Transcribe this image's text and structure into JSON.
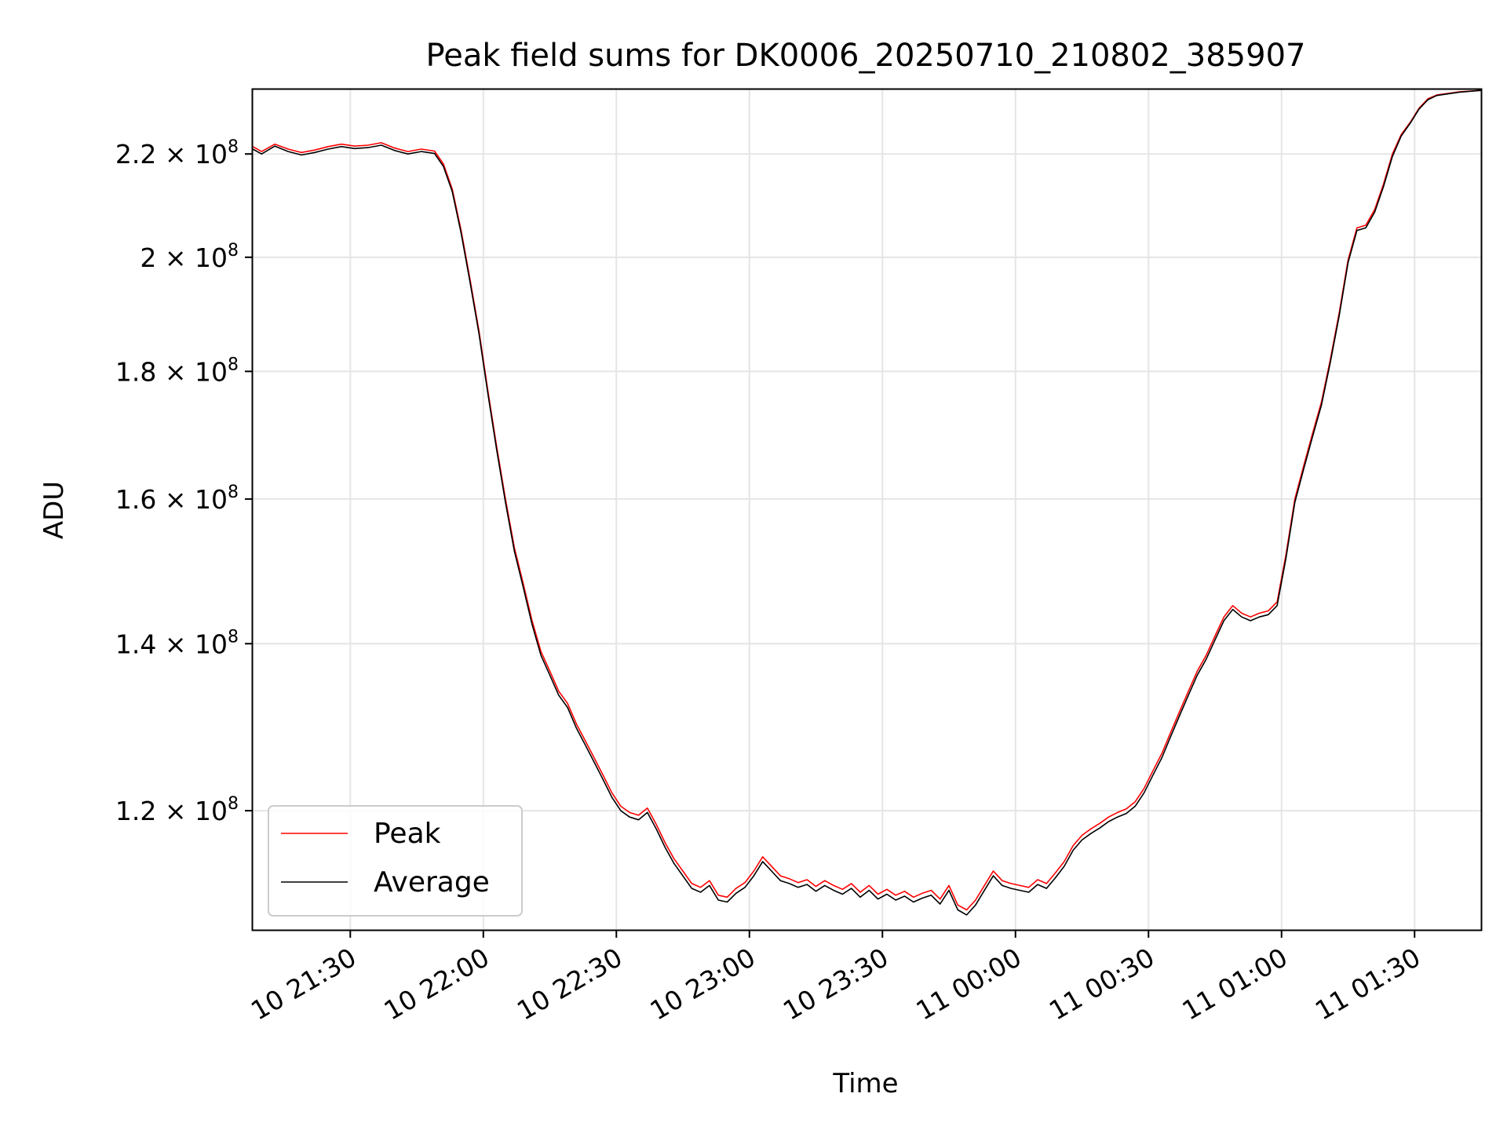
{
  "chart_data": {
    "type": "line",
    "title": "Peak field sums for DK0006_20250710_210802_385907",
    "xlabel": "Time",
    "ylabel": "ADU",
    "y_scale": "log",
    "ylim": [
      107500000,
      233500000
    ],
    "xlim": [
      "2025-07-10 21:08:00",
      "2025-07-11 01:45:00"
    ],
    "grid": true,
    "legend_position": "lower-left",
    "x_ticks": [
      {
        "label": "10 21:30",
        "value": "2025-07-10 21:30:00"
      },
      {
        "label": "10 22:00",
        "value": "2025-07-10 22:00:00"
      },
      {
        "label": "10 22:30",
        "value": "2025-07-10 22:30:00"
      },
      {
        "label": "10 23:00",
        "value": "2025-07-10 23:00:00"
      },
      {
        "label": "10 23:30",
        "value": "2025-07-10 23:30:00"
      },
      {
        "label": "11 00:00",
        "value": "2025-07-11 00:00:00"
      },
      {
        "label": "11 00:30",
        "value": "2025-07-11 00:30:00"
      },
      {
        "label": "11 01:00",
        "value": "2025-07-11 01:00:00"
      },
      {
        "label": "11 01:30",
        "value": "2025-07-11 01:30:00"
      }
    ],
    "y_ticks": [
      {
        "mantissa": "1.2",
        "exponent": "8",
        "value": 120000000
      },
      {
        "mantissa": "1.4",
        "exponent": "8",
        "value": 140000000
      },
      {
        "mantissa": "1.6",
        "exponent": "8",
        "value": 160000000
      },
      {
        "mantissa": "1.8",
        "exponent": "8",
        "value": 180000000
      },
      {
        "mantissa": "2",
        "exponent": "8",
        "value": 200000000
      },
      {
        "mantissa": "2.2",
        "exponent": "8",
        "value": 220000000
      }
    ],
    "x": [
      "2025-07-10 21:08:00",
      "2025-07-10 21:10:00",
      "2025-07-10 21:13:00",
      "2025-07-10 21:16:00",
      "2025-07-10 21:19:00",
      "2025-07-10 21:22:00",
      "2025-07-10 21:25:00",
      "2025-07-10 21:28:00",
      "2025-07-10 21:31:00",
      "2025-07-10 21:34:00",
      "2025-07-10 21:37:00",
      "2025-07-10 21:40:00",
      "2025-07-10 21:43:00",
      "2025-07-10 21:46:00",
      "2025-07-10 21:49:00",
      "2025-07-10 21:51:00",
      "2025-07-10 21:53:00",
      "2025-07-10 21:55:00",
      "2025-07-10 21:57:00",
      "2025-07-10 21:59:00",
      "2025-07-10 22:01:00",
      "2025-07-10 22:03:00",
      "2025-07-10 22:05:00",
      "2025-07-10 22:07:00",
      "2025-07-10 22:09:00",
      "2025-07-10 22:11:00",
      "2025-07-10 22:13:00",
      "2025-07-10 22:15:00",
      "2025-07-10 22:17:00",
      "2025-07-10 22:19:00",
      "2025-07-10 22:21:00",
      "2025-07-10 22:23:00",
      "2025-07-10 22:25:00",
      "2025-07-10 22:27:00",
      "2025-07-10 22:29:00",
      "2025-07-10 22:31:00",
      "2025-07-10 22:33:00",
      "2025-07-10 22:35:00",
      "2025-07-10 22:37:00",
      "2025-07-10 22:39:00",
      "2025-07-10 22:41:00",
      "2025-07-10 22:43:00",
      "2025-07-10 22:45:00",
      "2025-07-10 22:47:00",
      "2025-07-10 22:49:00",
      "2025-07-10 22:51:00",
      "2025-07-10 22:53:00",
      "2025-07-10 22:55:00",
      "2025-07-10 22:57:00",
      "2025-07-10 22:59:00",
      "2025-07-10 23:01:00",
      "2025-07-10 23:03:00",
      "2025-07-10 23:05:00",
      "2025-07-10 23:07:00",
      "2025-07-10 23:09:00",
      "2025-07-10 23:11:00",
      "2025-07-10 23:13:00",
      "2025-07-10 23:15:00",
      "2025-07-10 23:17:00",
      "2025-07-10 23:19:00",
      "2025-07-10 23:21:00",
      "2025-07-10 23:23:00",
      "2025-07-10 23:25:00",
      "2025-07-10 23:27:00",
      "2025-07-10 23:29:00",
      "2025-07-10 23:31:00",
      "2025-07-10 23:33:00",
      "2025-07-10 23:35:00",
      "2025-07-10 23:37:00",
      "2025-07-10 23:39:00",
      "2025-07-10 23:41:00",
      "2025-07-10 23:43:00",
      "2025-07-10 23:45:00",
      "2025-07-10 23:47:00",
      "2025-07-10 23:49:00",
      "2025-07-10 23:51:00",
      "2025-07-10 23:53:00",
      "2025-07-10 23:55:00",
      "2025-07-10 23:57:00",
      "2025-07-10 23:59:00",
      "2025-07-11 00:01:00",
      "2025-07-11 00:03:00",
      "2025-07-11 00:05:00",
      "2025-07-11 00:07:00",
      "2025-07-11 00:09:00",
      "2025-07-11 00:11:00",
      "2025-07-11 00:13:00",
      "2025-07-11 00:15:00",
      "2025-07-11 00:17:00",
      "2025-07-11 00:19:00",
      "2025-07-11 00:21:00",
      "2025-07-11 00:23:00",
      "2025-07-11 00:25:00",
      "2025-07-11 00:27:00",
      "2025-07-11 00:29:00",
      "2025-07-11 00:31:00",
      "2025-07-11 00:33:00",
      "2025-07-11 00:35:00",
      "2025-07-11 00:37:00",
      "2025-07-11 00:39:00",
      "2025-07-11 00:41:00",
      "2025-07-11 00:43:00",
      "2025-07-11 00:45:00",
      "2025-07-11 00:47:00",
      "2025-07-11 00:49:00",
      "2025-07-11 00:51:00",
      "2025-07-11 00:53:00",
      "2025-07-11 00:55:00",
      "2025-07-11 00:57:00",
      "2025-07-11 00:59:00",
      "2025-07-11 01:01:00",
      "2025-07-11 01:03:00",
      "2025-07-11 01:05:00",
      "2025-07-11 01:07:00",
      "2025-07-11 01:09:00",
      "2025-07-11 01:11:00",
      "2025-07-11 01:13:00",
      "2025-07-11 01:15:00",
      "2025-07-11 01:17:00",
      "2025-07-11 01:19:00",
      "2025-07-11 01:21:00",
      "2025-07-11 01:23:00",
      "2025-07-11 01:25:00",
      "2025-07-11 01:27:00",
      "2025-07-11 01:29:00",
      "2025-07-11 01:31:00",
      "2025-07-11 01:33:00",
      "2025-07-11 01:35:00",
      "2025-07-11 01:40:00",
      "2025-07-11 01:45:00"
    ],
    "series": [
      {
        "name": "Peak",
        "color": "#ff0000",
        "values": [
          221500000,
          220500000,
          222000000,
          221000000,
          220300000,
          220800000,
          221500000,
          222000000,
          221600000,
          221800000,
          222300000,
          221200000,
          220500000,
          221000000,
          220600000,
          218000000,
          213000000,
          205000000,
          196000000,
          187000000,
          177000000,
          168000000,
          160000000,
          153000000,
          148000000,
          143000000,
          139000000,
          136500000,
          134000000,
          132500000,
          130000000,
          128000000,
          126000000,
          124000000,
          122000000,
          120500000,
          119800000,
          119500000,
          120300000,
          118500000,
          116500000,
          114800000,
          113500000,
          112200000,
          111800000,
          112500000,
          111000000,
          110800000,
          111700000,
          112300000,
          113500000,
          115000000,
          114000000,
          113000000,
          112700000,
          112300000,
          112600000,
          111900000,
          112500000,
          112000000,
          111600000,
          112200000,
          111300000,
          112000000,
          111100000,
          111600000,
          111000000,
          111400000,
          110800000,
          111200000,
          111500000,
          110600000,
          112000000,
          110000000,
          109500000,
          110500000,
          112000000,
          113500000,
          112500000,
          112200000,
          112000000,
          111800000,
          112600000,
          112200000,
          113300000,
          114500000,
          116200000,
          117300000,
          118000000,
          118600000,
          119300000,
          119800000,
          120200000,
          121000000,
          122500000,
          124500000,
          126500000,
          129000000,
          131500000,
          134000000,
          136500000,
          138500000,
          141000000,
          143500000,
          145000000,
          144000000,
          143500000,
          144000000,
          144300000,
          145500000,
          152000000,
          160000000,
          165000000,
          170000000,
          175000000,
          182000000,
          190000000,
          199500000,
          205500000,
          206000000,
          209000000,
          214000000,
          220000000,
          224000000,
          226500000,
          229500000,
          231500000,
          232300000,
          233000000,
          233300000
        ]
      },
      {
        "name": "Average",
        "color": "#000000",
        "values": [
          221000000,
          220000000,
          221600000,
          220500000,
          219800000,
          220300000,
          221000000,
          221500000,
          221100000,
          221300000,
          221800000,
          220700000,
          220000000,
          220500000,
          220100000,
          217500000,
          212500000,
          204500000,
          195500000,
          186500000,
          176500000,
          167500000,
          159500000,
          152500000,
          147500000,
          142500000,
          138500000,
          136000000,
          133500000,
          132000000,
          129500000,
          127500000,
          125500000,
          123500000,
          121500000,
          120000000,
          119300000,
          119000000,
          119800000,
          118000000,
          116000000,
          114300000,
          113000000,
          111700000,
          111300000,
          112000000,
          110500000,
          110300000,
          111200000,
          111800000,
          113000000,
          114500000,
          113500000,
          112500000,
          112200000,
          111800000,
          112100000,
          111400000,
          112000000,
          111500000,
          111100000,
          111700000,
          110800000,
          111500000,
          110600000,
          111100000,
          110500000,
          110900000,
          110300000,
          110700000,
          111000000,
          110100000,
          111500000,
          109500000,
          109000000,
          110000000,
          111500000,
          113000000,
          112000000,
          111700000,
          111500000,
          111300000,
          112100000,
          111700000,
          112800000,
          114000000,
          115700000,
          116800000,
          117500000,
          118100000,
          118800000,
          119300000,
          119700000,
          120500000,
          122000000,
          124000000,
          126000000,
          128500000,
          131000000,
          133500000,
          136000000,
          138000000,
          140500000,
          143000000,
          144500000,
          143500000,
          143000000,
          143500000,
          143800000,
          145000000,
          151500000,
          159500000,
          164500000,
          169500000,
          174500000,
          181500000,
          189500000,
          199000000,
          205000000,
          205500000,
          208500000,
          213500000,
          219500000,
          223700000,
          226300000,
          229300000,
          231300000,
          232200000,
          232900000,
          233300000
        ]
      }
    ]
  }
}
